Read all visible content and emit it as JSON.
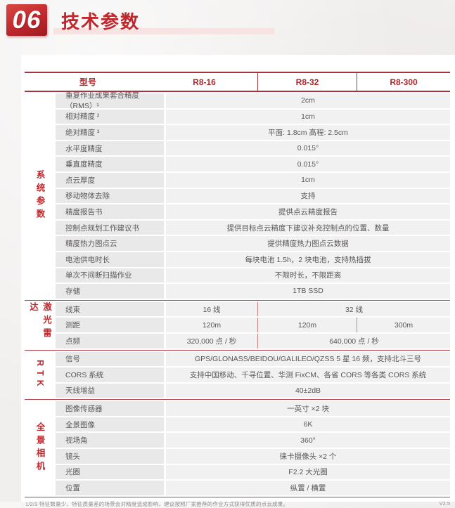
{
  "page": {
    "section_number": "06",
    "title": "技术参数",
    "footnote": "1/2/3 特征数量少、特征质量差的场景会对精度造成影响，建议按照厂家推荐的作业方式获得优质的点云成果。",
    "version": "V2.5"
  },
  "colors": {
    "accent_red": "#c0272d",
    "rule_red": "#b4464b",
    "label_cell_bg": "#e9e9e9",
    "value_cell_bg": "#f1f1f1",
    "body_text": "#5a5657",
    "underline_pink": "#f7e3e2"
  },
  "table": {
    "header": {
      "model_label": "型号",
      "models": [
        "R8-16",
        "R8-32",
        "R8-300"
      ]
    },
    "sections": [
      {
        "group": "系统参数",
        "rows": [
          {
            "label": "重复作业成果套合精度（RMS）¹",
            "values": [
              {
                "text": "2cm",
                "span": 3
              }
            ]
          },
          {
            "label": "相对精度 ²",
            "values": [
              {
                "text": "1cm",
                "span": 3
              }
            ]
          },
          {
            "label": "绝对精度 ³",
            "values": [
              {
                "text": "平面: 1.8cm 高程: 2.5cm",
                "span": 3
              }
            ]
          },
          {
            "label": "水平度精度",
            "values": [
              {
                "text": "0.015°",
                "span": 3
              }
            ]
          },
          {
            "label": "垂直度精度",
            "values": [
              {
                "text": "0.015°",
                "span": 3
              }
            ]
          },
          {
            "label": "点云厚度",
            "values": [
              {
                "text": "1cm",
                "span": 3
              }
            ]
          },
          {
            "label": "移动物体去除",
            "values": [
              {
                "text": "支持",
                "span": 3
              }
            ]
          },
          {
            "label": "精度报告书",
            "values": [
              {
                "text": "提供点云精度报告",
                "span": 3
              }
            ]
          },
          {
            "label": "控制点规划工作建议书",
            "values": [
              {
                "text": "提供目标点云精度下建议补充控制点的位置、数量",
                "span": 3
              }
            ]
          },
          {
            "label": "精度热力图点云",
            "values": [
              {
                "text": "提供精度热力图点云数据",
                "span": 3
              }
            ]
          },
          {
            "label": "电池供电时长",
            "values": [
              {
                "text": "每块电池 1.5h，2 块电池，支持热插拔",
                "span": 3
              }
            ]
          },
          {
            "label": "单次不间断扫描作业",
            "values": [
              {
                "text": "不限时长，不限距离",
                "span": 3
              }
            ]
          },
          {
            "label": "存储",
            "values": [
              {
                "text": "1TB  SSD",
                "span": 3
              }
            ]
          }
        ]
      },
      {
        "group": "激光雷达",
        "rows": [
          {
            "label": "线束",
            "values": [
              {
                "text": "16 线",
                "span": 1
              },
              {
                "text": "32 线",
                "span": 2
              }
            ]
          },
          {
            "label": "测距",
            "values": [
              {
                "text": "120m",
                "span": 1
              },
              {
                "text": "120m",
                "span": 1
              },
              {
                "text": "300m",
                "span": 1
              }
            ]
          },
          {
            "label": "点频",
            "values": [
              {
                "text": "320,000 点 / 秒",
                "span": 1
              },
              {
                "text": "640,000 点 / 秒",
                "span": 2
              }
            ]
          }
        ]
      },
      {
        "group": "RTK",
        "rows": [
          {
            "label": "信号",
            "values": [
              {
                "text": "GPS/GLONASS/BEIDOU/GALILEO/QZSS  5 星 16 频，支持北斗三号",
                "span": 3
              }
            ]
          },
          {
            "label": "CORS 系统",
            "values": [
              {
                "text": "支持中国移动、千寻位置、华测 FixCM、各省 CORS 等各类 CORS 系统",
                "span": 3
              }
            ]
          },
          {
            "label": "天线增益",
            "values": [
              {
                "text": "40±2dB",
                "span": 3
              }
            ]
          }
        ]
      },
      {
        "group": "全景相机",
        "rows": [
          {
            "label": "图像传感器",
            "values": [
              {
                "text": "一英寸 ×2 块",
                "span": 3
              }
            ]
          },
          {
            "label": "全景图像",
            "values": [
              {
                "text": "6K",
                "span": 3
              }
            ]
          },
          {
            "label": "视场角",
            "values": [
              {
                "text": "360°",
                "span": 3
              }
            ]
          },
          {
            "label": "镜头",
            "values": [
              {
                "text": "徕卡摄像头 ×2 个",
                "span": 3
              }
            ]
          },
          {
            "label": "光圈",
            "values": [
              {
                "text": "F2.2 大光圈",
                "span": 3
              }
            ]
          },
          {
            "label": "位置",
            "values": [
              {
                "text": "纵置 / 横置",
                "span": 3
              }
            ]
          }
        ]
      }
    ]
  }
}
